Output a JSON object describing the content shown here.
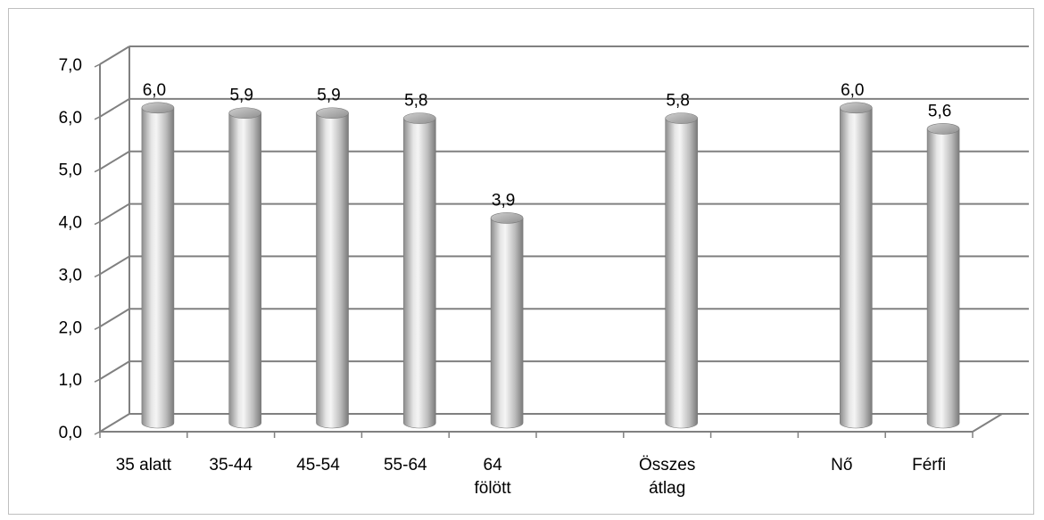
{
  "chart_data": {
    "type": "bar",
    "style": "3d-cylinder",
    "categories": [
      [
        "35 alatt"
      ],
      [
        "35-44"
      ],
      [
        "45-54"
      ],
      [
        "55-64"
      ],
      [
        "64",
        "fölött"
      ],
      [],
      [
        "Összes",
        "átlag"
      ],
      [],
      [
        "Nő"
      ],
      [
        "Férfi"
      ]
    ],
    "values": [
      6.0,
      5.9,
      5.9,
      5.8,
      3.9,
      null,
      5.8,
      null,
      6.0,
      5.6
    ],
    "data_labels": [
      "6,0",
      "5,9",
      "5,9",
      "5,8",
      "3,9",
      "",
      "5,8",
      "",
      "6,0",
      "5,6"
    ],
    "y_ticks": [
      "0,0",
      "1,0",
      "2,0",
      "3,0",
      "4,0",
      "5,0",
      "6,0",
      "7,0"
    ],
    "ylim": [
      0,
      7
    ],
    "grid": true,
    "legend": "none",
    "colors": {
      "bar_light": "#f2f2f2",
      "bar_mid": "#bdbdbd",
      "bar_dark": "#7f7f7f",
      "grid": "#808080",
      "frame": "#bfbfbf"
    }
  }
}
